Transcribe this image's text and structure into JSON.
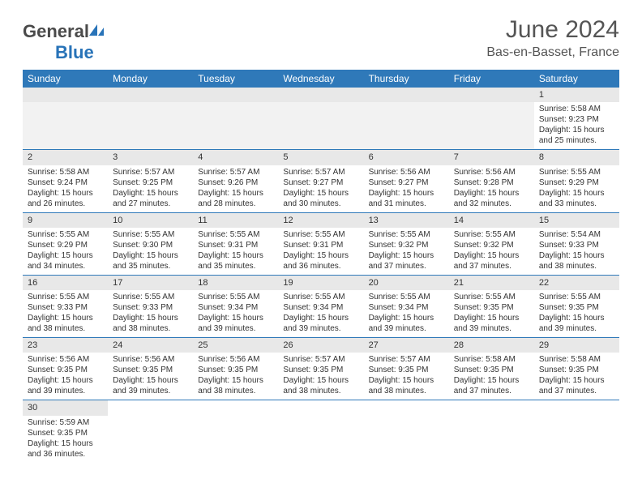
{
  "brand": {
    "general": "General",
    "blue": "Blue"
  },
  "title": {
    "month_year": "June 2024",
    "location": "Bas-en-Basset, France"
  },
  "colors": {
    "header_bg": "#2f79b9",
    "header_text": "#ffffff",
    "daynum_bg": "#e8e8e8",
    "border": "#2f79b9"
  },
  "days": [
    "Sunday",
    "Monday",
    "Tuesday",
    "Wednesday",
    "Thursday",
    "Friday",
    "Saturday"
  ],
  "weeks": [
    [
      null,
      null,
      null,
      null,
      null,
      null,
      {
        "n": "1",
        "sr": "Sunrise: 5:58 AM",
        "ss": "Sunset: 9:23 PM",
        "d1": "Daylight: 15 hours",
        "d2": "and 25 minutes."
      }
    ],
    [
      {
        "n": "2",
        "sr": "Sunrise: 5:58 AM",
        "ss": "Sunset: 9:24 PM",
        "d1": "Daylight: 15 hours",
        "d2": "and 26 minutes."
      },
      {
        "n": "3",
        "sr": "Sunrise: 5:57 AM",
        "ss": "Sunset: 9:25 PM",
        "d1": "Daylight: 15 hours",
        "d2": "and 27 minutes."
      },
      {
        "n": "4",
        "sr": "Sunrise: 5:57 AM",
        "ss": "Sunset: 9:26 PM",
        "d1": "Daylight: 15 hours",
        "d2": "and 28 minutes."
      },
      {
        "n": "5",
        "sr": "Sunrise: 5:57 AM",
        "ss": "Sunset: 9:27 PM",
        "d1": "Daylight: 15 hours",
        "d2": "and 30 minutes."
      },
      {
        "n": "6",
        "sr": "Sunrise: 5:56 AM",
        "ss": "Sunset: 9:27 PM",
        "d1": "Daylight: 15 hours",
        "d2": "and 31 minutes."
      },
      {
        "n": "7",
        "sr": "Sunrise: 5:56 AM",
        "ss": "Sunset: 9:28 PM",
        "d1": "Daylight: 15 hours",
        "d2": "and 32 minutes."
      },
      {
        "n": "8",
        "sr": "Sunrise: 5:55 AM",
        "ss": "Sunset: 9:29 PM",
        "d1": "Daylight: 15 hours",
        "d2": "and 33 minutes."
      }
    ],
    [
      {
        "n": "9",
        "sr": "Sunrise: 5:55 AM",
        "ss": "Sunset: 9:29 PM",
        "d1": "Daylight: 15 hours",
        "d2": "and 34 minutes."
      },
      {
        "n": "10",
        "sr": "Sunrise: 5:55 AM",
        "ss": "Sunset: 9:30 PM",
        "d1": "Daylight: 15 hours",
        "d2": "and 35 minutes."
      },
      {
        "n": "11",
        "sr": "Sunrise: 5:55 AM",
        "ss": "Sunset: 9:31 PM",
        "d1": "Daylight: 15 hours",
        "d2": "and 35 minutes."
      },
      {
        "n": "12",
        "sr": "Sunrise: 5:55 AM",
        "ss": "Sunset: 9:31 PM",
        "d1": "Daylight: 15 hours",
        "d2": "and 36 minutes."
      },
      {
        "n": "13",
        "sr": "Sunrise: 5:55 AM",
        "ss": "Sunset: 9:32 PM",
        "d1": "Daylight: 15 hours",
        "d2": "and 37 minutes."
      },
      {
        "n": "14",
        "sr": "Sunrise: 5:55 AM",
        "ss": "Sunset: 9:32 PM",
        "d1": "Daylight: 15 hours",
        "d2": "and 37 minutes."
      },
      {
        "n": "15",
        "sr": "Sunrise: 5:54 AM",
        "ss": "Sunset: 9:33 PM",
        "d1": "Daylight: 15 hours",
        "d2": "and 38 minutes."
      }
    ],
    [
      {
        "n": "16",
        "sr": "Sunrise: 5:55 AM",
        "ss": "Sunset: 9:33 PM",
        "d1": "Daylight: 15 hours",
        "d2": "and 38 minutes."
      },
      {
        "n": "17",
        "sr": "Sunrise: 5:55 AM",
        "ss": "Sunset: 9:33 PM",
        "d1": "Daylight: 15 hours",
        "d2": "and 38 minutes."
      },
      {
        "n": "18",
        "sr": "Sunrise: 5:55 AM",
        "ss": "Sunset: 9:34 PM",
        "d1": "Daylight: 15 hours",
        "d2": "and 39 minutes."
      },
      {
        "n": "19",
        "sr": "Sunrise: 5:55 AM",
        "ss": "Sunset: 9:34 PM",
        "d1": "Daylight: 15 hours",
        "d2": "and 39 minutes."
      },
      {
        "n": "20",
        "sr": "Sunrise: 5:55 AM",
        "ss": "Sunset: 9:34 PM",
        "d1": "Daylight: 15 hours",
        "d2": "and 39 minutes."
      },
      {
        "n": "21",
        "sr": "Sunrise: 5:55 AM",
        "ss": "Sunset: 9:35 PM",
        "d1": "Daylight: 15 hours",
        "d2": "and 39 minutes."
      },
      {
        "n": "22",
        "sr": "Sunrise: 5:55 AM",
        "ss": "Sunset: 9:35 PM",
        "d1": "Daylight: 15 hours",
        "d2": "and 39 minutes."
      }
    ],
    [
      {
        "n": "23",
        "sr": "Sunrise: 5:56 AM",
        "ss": "Sunset: 9:35 PM",
        "d1": "Daylight: 15 hours",
        "d2": "and 39 minutes."
      },
      {
        "n": "24",
        "sr": "Sunrise: 5:56 AM",
        "ss": "Sunset: 9:35 PM",
        "d1": "Daylight: 15 hours",
        "d2": "and 39 minutes."
      },
      {
        "n": "25",
        "sr": "Sunrise: 5:56 AM",
        "ss": "Sunset: 9:35 PM",
        "d1": "Daylight: 15 hours",
        "d2": "and 38 minutes."
      },
      {
        "n": "26",
        "sr": "Sunrise: 5:57 AM",
        "ss": "Sunset: 9:35 PM",
        "d1": "Daylight: 15 hours",
        "d2": "and 38 minutes."
      },
      {
        "n": "27",
        "sr": "Sunrise: 5:57 AM",
        "ss": "Sunset: 9:35 PM",
        "d1": "Daylight: 15 hours",
        "d2": "and 38 minutes."
      },
      {
        "n": "28",
        "sr": "Sunrise: 5:58 AM",
        "ss": "Sunset: 9:35 PM",
        "d1": "Daylight: 15 hours",
        "d2": "and 37 minutes."
      },
      {
        "n": "29",
        "sr": "Sunrise: 5:58 AM",
        "ss": "Sunset: 9:35 PM",
        "d1": "Daylight: 15 hours",
        "d2": "and 37 minutes."
      }
    ],
    [
      {
        "n": "30",
        "sr": "Sunrise: 5:59 AM",
        "ss": "Sunset: 9:35 PM",
        "d1": "Daylight: 15 hours",
        "d2": "and 36 minutes."
      },
      null,
      null,
      null,
      null,
      null,
      null
    ]
  ]
}
